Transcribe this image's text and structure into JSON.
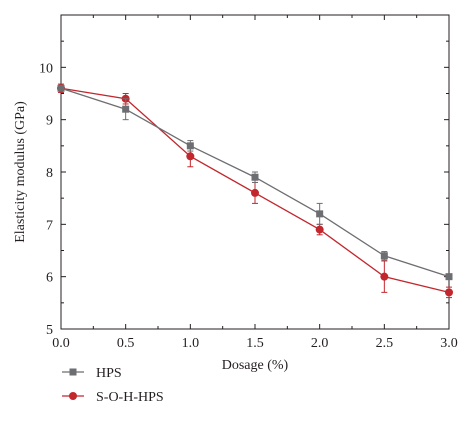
{
  "chart_data": {
    "type": "line",
    "title": "",
    "xlabel": "Dosage (%)",
    "ylabel": "Elasticity modulus (GPa)",
    "xlim": [
      0.0,
      3.0
    ],
    "ylim": [
      5,
      11
    ],
    "xticks": [
      "0.0",
      "0.5",
      "1.0",
      "1.5",
      "2.0",
      "2.5",
      "3.0"
    ],
    "yticks": [
      "5",
      "6",
      "7",
      "8",
      "9",
      "10"
    ],
    "grid": false,
    "legend_position": "bottom-left, below plot",
    "x": [
      0.0,
      0.5,
      1.0,
      1.5,
      2.0,
      2.5,
      3.0
    ],
    "series": [
      {
        "name": "HPS",
        "marker": "square",
        "color": "#6d6e71",
        "values": [
          9.6,
          9.2,
          8.5,
          7.9,
          7.2,
          6.4,
          6.0
        ],
        "errors": [
          0.05,
          0.2,
          0.1,
          0.1,
          0.2,
          0.08,
          0.05
        ]
      },
      {
        "name": "S-O-H-HPS",
        "marker": "circle",
        "color": "#c1272d",
        "values": [
          9.6,
          9.4,
          8.3,
          7.6,
          6.9,
          6.0,
          5.7
        ],
        "errors": [
          0.08,
          0.1,
          0.2,
          0.2,
          0.1,
          0.3,
          0.1
        ]
      }
    ]
  }
}
